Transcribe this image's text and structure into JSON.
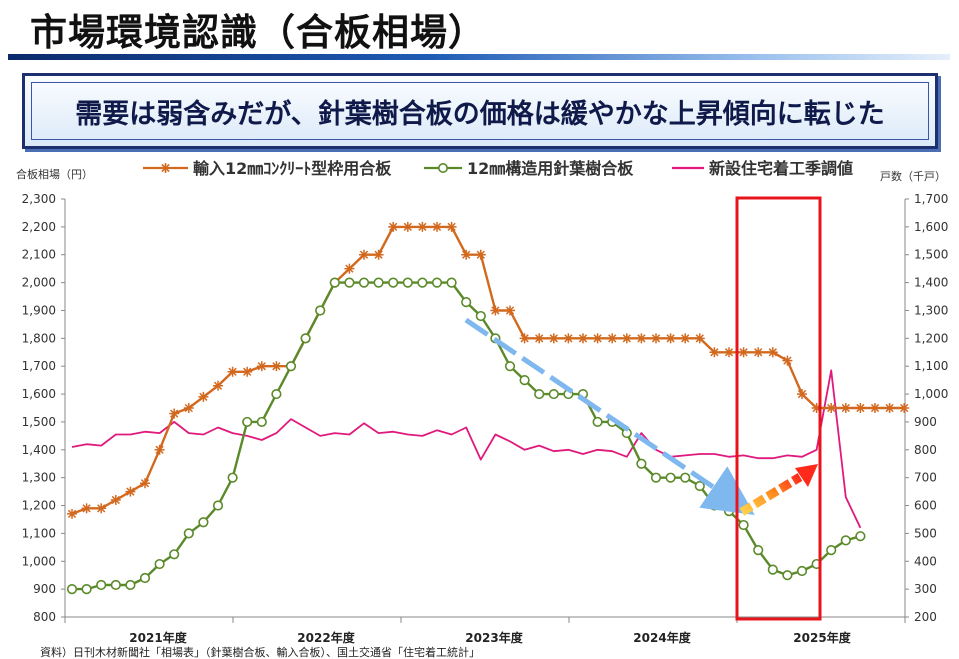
{
  "header": {
    "title": "市場環境認識（合板相場）",
    "headline": "需要は弱含みだが、針葉樹合板の価格は緩やかな上昇傾向に転じた"
  },
  "chart_data": {
    "type": "line",
    "left_axis": {
      "label": "合板相場（円）",
      "min": 800,
      "max": 2300,
      "step": 100,
      "ticks": [
        "800",
        "900",
        "1,000",
        "1,100",
        "1,200",
        "1,300",
        "1,400",
        "1,500",
        "1,600",
        "1,700",
        "1,800",
        "1,900",
        "2,000",
        "2,100",
        "2,200",
        "2,300"
      ]
    },
    "right_axis": {
      "label": "戸数（千戸）",
      "min": 200,
      "max": 1700,
      "step": 100,
      "ticks": [
        "200",
        "300",
        "400",
        "500",
        "600",
        "700",
        "800",
        "900",
        "1,000",
        "1,100",
        "1,200",
        "1,300",
        "1,400",
        "1,500",
        "1,600",
        "1,700"
      ]
    },
    "x_labels": [
      "2021年度",
      "2022年度",
      "2023年度",
      "2024年度",
      "2025年度"
    ],
    "series": [
      {
        "name": "輸入12㎜ｺﾝｸﾘｰﾄ型枠用合板",
        "axis": "left",
        "color": "#d2691e",
        "marker": "asterisk",
        "values": [
          1170,
          1190,
          1190,
          1220,
          1250,
          1280,
          1400,
          1530,
          1550,
          1590,
          1630,
          1680,
          1680,
          1700,
          1700,
          1700,
          1800,
          1900,
          2000,
          2050,
          2100,
          2100,
          2200,
          2200,
          2200,
          2200,
          2200,
          2100,
          2100,
          1900,
          1900,
          1800,
          1800,
          1800,
          1800,
          1800,
          1800,
          1800,
          1800,
          1800,
          1800,
          1800,
          1800,
          1800,
          1750,
          1750,
          1750,
          1750,
          1750,
          1720,
          1600,
          1550,
          1550,
          1550,
          1550,
          1550,
          1550,
          1550
        ]
      },
      {
        "name": "12㎜構造用針葉樹合板",
        "axis": "left",
        "color": "#5a8a2a",
        "marker": "circle",
        "values": [
          900,
          900,
          915,
          915,
          915,
          940,
          990,
          1025,
          1100,
          1140,
          1200,
          1300,
          1500,
          1500,
          1600,
          1700,
          1800,
          1900,
          2000,
          2000,
          2000,
          2000,
          2000,
          2000,
          2000,
          2000,
          2000,
          1930,
          1880,
          1800,
          1700,
          1650,
          1600,
          1600,
          1600,
          1600,
          1500,
          1500,
          1460,
          1350,
          1300,
          1300,
          1300,
          1270,
          1200,
          1180,
          1130,
          1040,
          970,
          950,
          965,
          990,
          1040,
          1075,
          1090,
          null,
          null,
          null
        ]
      },
      {
        "name": "新設住宅着工季調値",
        "axis": "right",
        "color": "#e0197c",
        "marker": "none",
        "values": [
          810,
          820,
          815,
          855,
          855,
          865,
          860,
          900,
          860,
          855,
          880,
          860,
          850,
          835,
          860,
          910,
          880,
          850,
          860,
          855,
          895,
          860,
          865,
          855,
          850,
          870,
          855,
          880,
          765,
          855,
          830,
          800,
          815,
          795,
          800,
          785,
          800,
          795,
          775,
          860,
          800,
          775,
          780,
          785,
          785,
          775,
          780,
          770,
          770,
          780,
          775,
          800,
          1085,
          630,
          520,
          null,
          null,
          null
        ]
      }
    ],
    "annotations": {
      "highlight_box": "2025年初〜",
      "trend_down_arrow": "blue dashed arrow (decline)",
      "trend_up_arrow": "orange-red dashed arrow (rebound)"
    },
    "grid": false,
    "legend_position": "top"
  },
  "source_note": "資料）日刊木材新聞社「相場表」（針葉樹合板、輸入合板）、国土交通省「住宅着工統計」"
}
